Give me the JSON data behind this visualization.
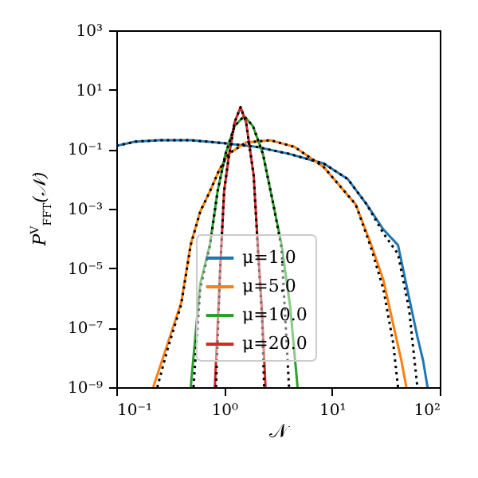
{
  "chart_data": {
    "type": "line",
    "xlabel": "𝒩",
    "ylabel": "P$^{V}$$_{FFT}$(𝒩)",
    "log": "xy",
    "grid": false,
    "legend": "bottom",
    "line_style": "solid",
    "marker": "none",
    "xlim": [
      0.1,
      100
    ],
    "xticks": [
      {
        "value": 0.1,
        "label": "10⁻¹"
      },
      {
        "value": 1,
        "label": "10⁰"
      },
      {
        "value": 10,
        "label": "10¹"
      },
      {
        "value": 100,
        "label": "10²"
      }
    ],
    "ylim": [
      1e-09,
      1000
    ],
    "yticks": [
      {
        "value": 1e-09,
        "label": "10⁻⁹"
      },
      {
        "value": 1e-07,
        "label": "10⁻⁷"
      },
      {
        "value": 1e-05,
        "label": "10⁻⁵"
      },
      {
        "value": 0.001,
        "label": "10⁻³"
      },
      {
        "value": 0.1,
        "label": "10⁻¹"
      },
      {
        "value": 10,
        "label": "10¹"
      },
      {
        "value": 1000,
        "label": "10³"
      }
    ],
    "series": [
      {
        "name": "μ=1.0",
        "color": "#1f77b4",
        "x": [
          0.1,
          0.15,
          0.25,
          0.5,
          1,
          2,
          4,
          8.4,
          14,
          21,
          30,
          41,
          52,
          62,
          70,
          77
        ],
        "values": [
          0.13,
          0.18,
          0.2,
          0.2,
          0.16,
          0.12,
          0.07,
          0.033,
          0.01,
          0.0014,
          0.0002,
          6e-05,
          1e-06,
          5e-08,
          8e-09,
          1e-09
        ]
      },
      {
        "name": "μ=5.0",
        "color": "#ff7f0e",
        "x": [
          0.22,
          0.3,
          0.4,
          0.49,
          0.6,
          0.74,
          0.9,
          1.1,
          1.6,
          2.7,
          4.5,
          8.4,
          16.6,
          23,
          30,
          37,
          44,
          49
        ],
        "values": [
          1e-09,
          3e-08,
          7e-07,
          6.5e-05,
          0.0008,
          0.0039,
          0.02,
          0.07,
          0.17,
          0.2,
          0.12,
          0.025,
          0.0014,
          6.5e-05,
          4e-06,
          1.3e-07,
          8e-09,
          1e-09
        ]
      },
      {
        "name": "μ=10.0",
        "color": "#2ca02c",
        "x": [
          0.49,
          0.6,
          0.74,
          0.87,
          1.03,
          1.25,
          1.53,
          1.85,
          2.29,
          2.86,
          3.4,
          4.1,
          4.8
        ],
        "values": [
          1e-09,
          3e-06,
          6.5e-05,
          0.0039,
          0.07,
          0.6,
          1.3,
          0.6,
          0.07,
          0.0014,
          6.5e-05,
          5e-07,
          1e-09
        ]
      },
      {
        "name": "μ=20.0",
        "color": "#d62728",
        "x": [
          0.82,
          0.92,
          1.0,
          1.1,
          1.25,
          1.42,
          1.6,
          1.88,
          2.05,
          2.25,
          2.42
        ],
        "values": [
          1e-09,
          1e-05,
          0.0039,
          0.05,
          0.8,
          2.6,
          0.8,
          0.013,
          6.5e-05,
          3e-07,
          1e-09
        ]
      },
      {
        "color": "#000000",
        "line_style": "dotted",
        "x": [
          0.1,
          0.15,
          0.25,
          0.5,
          1,
          2,
          4,
          8.4,
          14,
          21,
          30,
          41,
          52,
          62
        ],
        "values": [
          0.13,
          0.18,
          0.2,
          0.2,
          0.16,
          0.12,
          0.07,
          0.033,
          0.01,
          0.0014,
          0.00015,
          3e-05,
          4e-07,
          1e-09
        ]
      },
      {
        "color": "#000000",
        "line_style": "dotted",
        "x": [
          0.24,
          0.3,
          0.4,
          0.49,
          0.6,
          0.74,
          0.9,
          1.1,
          1.6,
          2.7,
          4.5,
          8.4,
          16.6,
          23,
          30,
          37,
          41
        ],
        "values": [
          1e-09,
          2e-08,
          6e-07,
          6e-05,
          0.0008,
          0.0039,
          0.02,
          0.07,
          0.17,
          0.2,
          0.12,
          0.025,
          0.0014,
          5e-05,
          2e-06,
          3e-08,
          1e-09
        ]
      },
      {
        "color": "#000000",
        "line_style": "dotted",
        "x": [
          0.52,
          0.6,
          0.74,
          0.87,
          1.03,
          1.25,
          1.53,
          1.85,
          2.29,
          2.86,
          3.4,
          4.0
        ],
        "values": [
          1e-09,
          2e-06,
          6e-05,
          0.0039,
          0.07,
          0.6,
          1.3,
          0.6,
          0.07,
          0.0014,
          5e-05,
          1e-09
        ]
      },
      {
        "color": "#000000",
        "line_style": "dotted",
        "x": [
          0.84,
          0.92,
          1.0,
          1.1,
          1.25,
          1.42,
          1.6,
          1.88,
          2.05,
          2.25,
          2.35
        ],
        "values": [
          1e-09,
          1e-05,
          0.0039,
          0.05,
          0.8,
          2.6,
          0.8,
          0.013,
          5e-05,
          2e-07,
          1e-09
        ]
      }
    ]
  }
}
